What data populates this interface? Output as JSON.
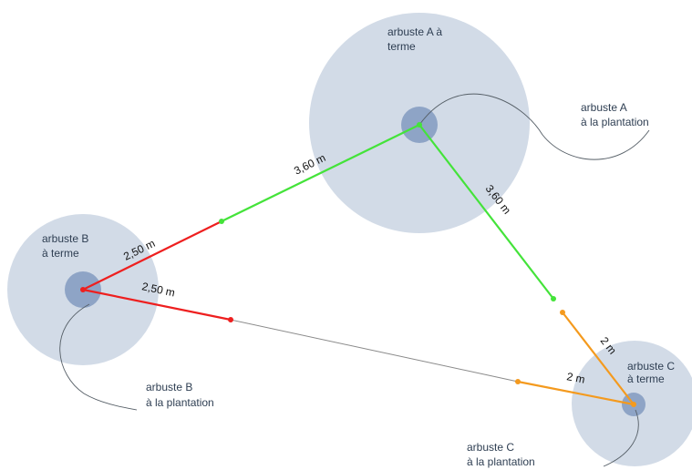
{
  "colors": {
    "canopy_fill": "#d2dbe7",
    "planting_fill": "#8ea4c6",
    "shrub_a_spacing": "#44e33a",
    "shrub_b_spacing": "#ee1f1f",
    "shrub_c_spacing": "#f49a1e",
    "overlap_line": "#8a8a8a",
    "label_text": "#2e3e52"
  },
  "shrubs": {
    "a": {
      "mature_label_line1": "arbuste A à",
      "mature_label_line2": "terme",
      "planting_label_line1": "arbuste A",
      "planting_label_line2": "à la plantation"
    },
    "b": {
      "mature_label_line1": "arbuste B",
      "mature_label_line2": "à terme",
      "planting_label_line1": "arbuste B",
      "planting_label_line2": "à la plantation"
    },
    "c": {
      "mature_label_line1": "arbuste C",
      "mature_label_line2": "à terme",
      "planting_label_line1": "arbuste C",
      "planting_label_line2": "à la plantation"
    }
  },
  "distances": {
    "a_to_b": "3,60 m",
    "a_to_c": "3,60 m",
    "b_to_a": "2,50 m",
    "b_to_c": "2,50 m",
    "c_to_a": "2 m",
    "c_to_b": "2 m"
  }
}
